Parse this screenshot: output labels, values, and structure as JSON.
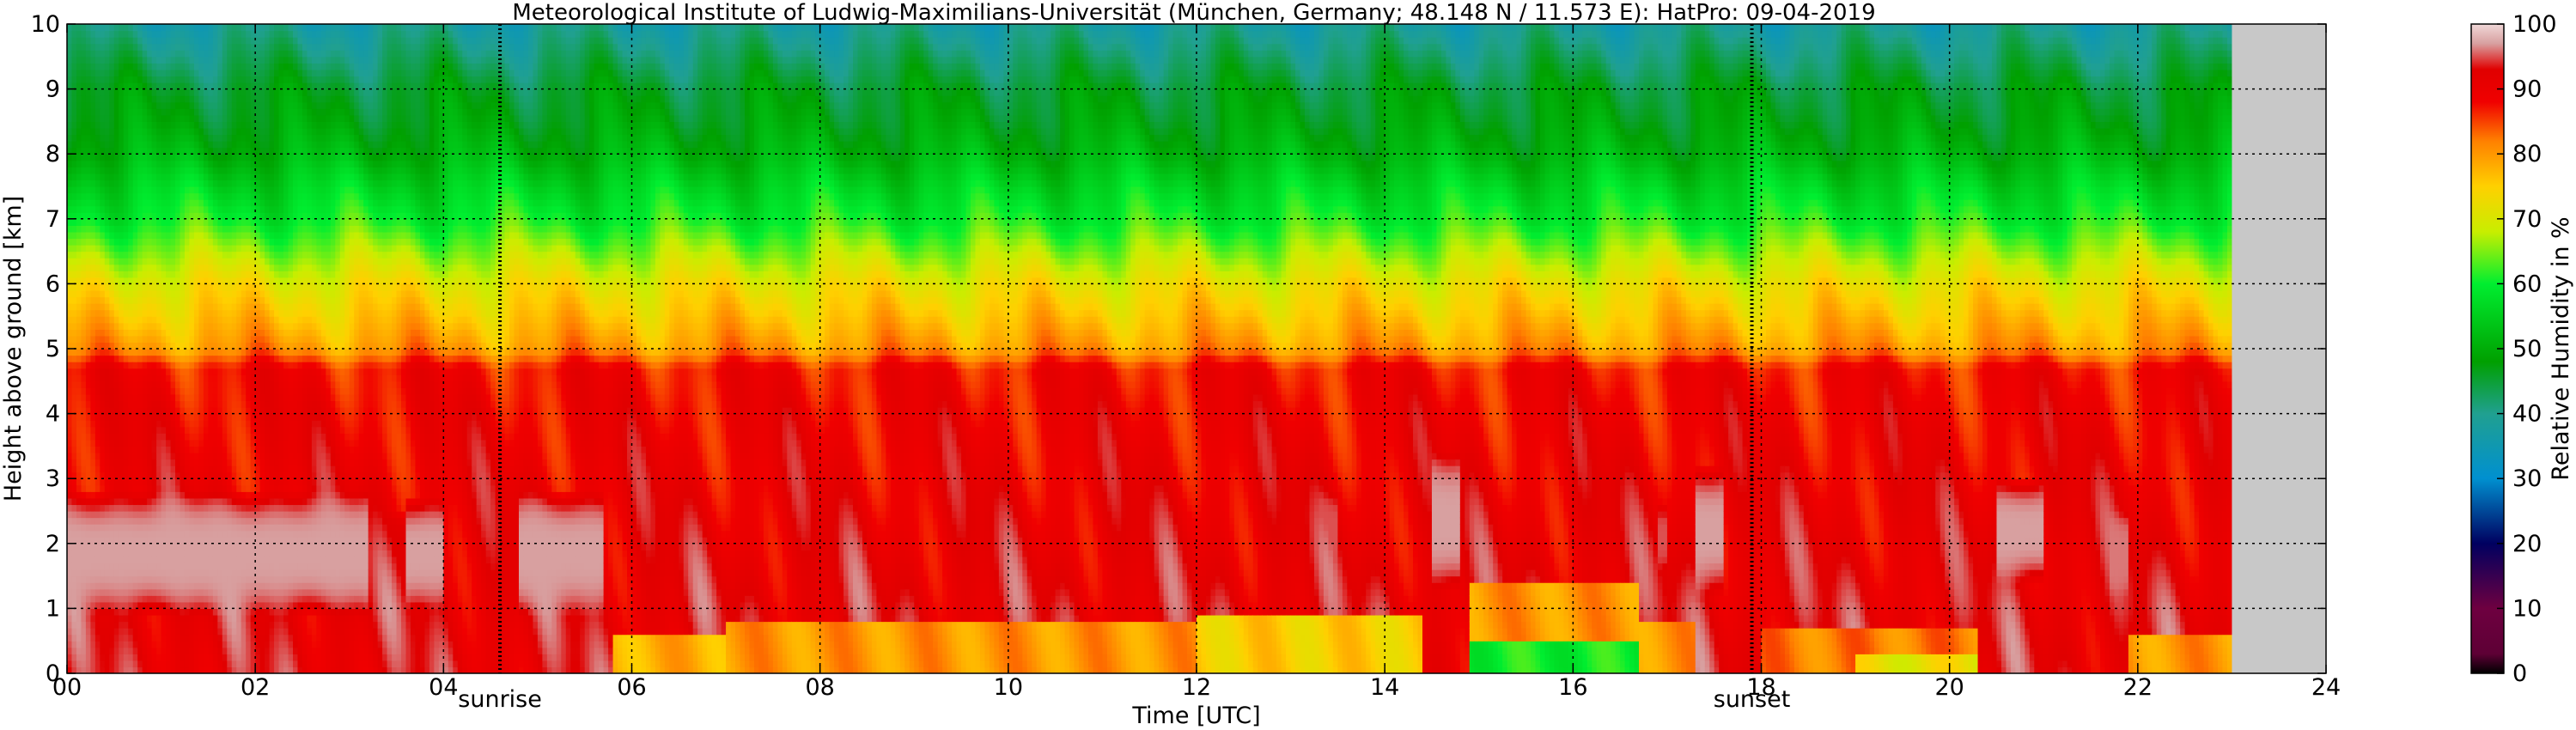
{
  "chart_data": {
    "type": "heatmap",
    "title": "Meteorological Institute of Ludwig-Maximilians-Universität (München, Germany; 48.148 N / 11.573 E):    HatPro: 09-04-2019",
    "xlabel": "Time [UTC]",
    "ylabel": "Height above ground [km]",
    "xlim": [
      0,
      24
    ],
    "ylim": [
      0,
      10
    ],
    "data_end_time_utc": 23.0,
    "x_ticks": [
      "00",
      "02",
      "04",
      "06",
      "08",
      "10",
      "12",
      "14",
      "16",
      "18",
      "20",
      "22",
      "24"
    ],
    "y_ticks": [
      "0",
      "1",
      "2",
      "3",
      "4",
      "5",
      "6",
      "7",
      "8",
      "9",
      "10"
    ],
    "grid": true,
    "markers": [
      {
        "label": "sunrise",
        "time_utc": 4.6
      },
      {
        "label": "sunset",
        "time_utc": 17.9
      }
    ],
    "colorbar": {
      "label": "Relative Humidity in %",
      "range": [
        0,
        100
      ],
      "ticks": [
        "0",
        "10",
        "20",
        "30",
        "40",
        "50",
        "60",
        "70",
        "80",
        "90",
        "100"
      ],
      "stops": [
        {
          "value": 0,
          "color": "#000000"
        },
        {
          "value": 3,
          "color": "#5e0035"
        },
        {
          "value": 10,
          "color": "#6e0040"
        },
        {
          "value": 20,
          "color": "#000060"
        },
        {
          "value": 30,
          "color": "#0090d0"
        },
        {
          "value": 40,
          "color": "#20a090"
        },
        {
          "value": 48,
          "color": "#00a000"
        },
        {
          "value": 60,
          "color": "#00ee30"
        },
        {
          "value": 68,
          "color": "#c8ee00"
        },
        {
          "value": 75,
          "color": "#ffd000"
        },
        {
          "value": 82,
          "color": "#ff8000"
        },
        {
          "value": 88,
          "color": "#f00000"
        },
        {
          "value": 93,
          "color": "#e00000"
        },
        {
          "value": 97,
          "color": "#d8a0a0"
        },
        {
          "value": 100,
          "color": "#f0d8d8"
        }
      ]
    },
    "rh_profile_base": [
      {
        "height_km": 0.0,
        "rh": 92
      },
      {
        "height_km": 1.0,
        "rh": 92
      },
      {
        "height_km": 2.0,
        "rh": 91
      },
      {
        "height_km": 3.0,
        "rh": 90
      },
      {
        "height_km": 4.0,
        "rh": 89
      },
      {
        "height_km": 4.7,
        "rh": 88
      },
      {
        "height_km": 5.0,
        "rh": 80
      },
      {
        "height_km": 5.5,
        "rh": 76
      },
      {
        "height_km": 6.0,
        "rh": 72
      },
      {
        "height_km": 6.5,
        "rh": 66
      },
      {
        "height_km": 7.0,
        "rh": 60
      },
      {
        "height_km": 7.5,
        "rh": 56
      },
      {
        "height_km": 8.0,
        "rh": 51
      },
      {
        "height_km": 8.5,
        "rh": 48
      },
      {
        "height_km": 9.0,
        "rh": 46
      },
      {
        "height_km": 9.5,
        "rh": 42
      },
      {
        "height_km": 10.0,
        "rh": 38
      }
    ],
    "features": [
      {
        "t_start": 0.0,
        "t_end": 3.2,
        "h_low": 0.9,
        "h_high": 2.8,
        "rh": 97
      },
      {
        "t_start": 3.2,
        "t_end": 3.6,
        "h_low": 1.2,
        "h_high": 2.5,
        "rh": 93
      },
      {
        "t_start": 3.6,
        "t_end": 4.0,
        "h_low": 1.0,
        "h_high": 2.7,
        "rh": 97
      },
      {
        "t_start": 4.8,
        "t_end": 5.7,
        "h_low": 0.9,
        "h_high": 2.8,
        "rh": 97
      },
      {
        "t_start": 14.5,
        "t_end": 14.8,
        "h_low": 1.3,
        "h_high": 3.4,
        "rh": 97
      },
      {
        "t_start": 17.3,
        "t_end": 17.6,
        "h_low": 1.2,
        "h_high": 3.2,
        "rh": 97
      },
      {
        "t_start": 20.5,
        "t_end": 21.0,
        "h_low": 1.4,
        "h_high": 3.0,
        "rh": 97
      },
      {
        "t_start": 21.7,
        "t_end": 21.9,
        "h_low": 1.2,
        "h_high": 2.5,
        "rh": 96
      },
      {
        "t_start": 13.3,
        "t_end": 13.5,
        "h_low": 1.6,
        "h_high": 2.8,
        "rh": 95
      },
      {
        "t_start": 16.9,
        "t_end": 17.0,
        "h_low": 1.6,
        "h_high": 2.6,
        "rh": 95
      }
    ],
    "surface_layer": [
      {
        "t_start": 5.8,
        "t_end": 7.0,
        "h_top": 0.6,
        "rh": 78
      },
      {
        "t_start": 7.0,
        "t_end": 12.0,
        "h_top": 0.8,
        "rh": 80
      },
      {
        "t_start": 12.0,
        "t_end": 14.4,
        "h_top": 0.9,
        "rh": 75
      },
      {
        "t_start": 14.9,
        "t_end": 16.7,
        "h_top": 1.4,
        "rh": 80
      },
      {
        "t_start": 14.9,
        "t_end": 16.7,
        "h_top": 0.5,
        "rh": 60
      },
      {
        "t_start": 16.7,
        "t_end": 17.3,
        "h_top": 0.8,
        "rh": 80
      },
      {
        "t_start": 18.0,
        "t_end": 20.3,
        "h_top": 0.7,
        "rh": 82
      },
      {
        "t_start": 19.0,
        "t_end": 20.3,
        "h_top": 0.3,
        "rh": 72
      },
      {
        "t_start": 21.9,
        "t_end": 23.0,
        "h_top": 0.6,
        "rh": 80
      }
    ]
  }
}
